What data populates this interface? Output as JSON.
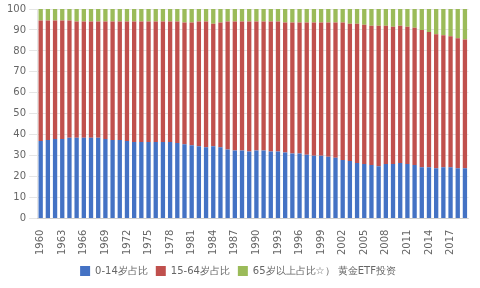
{
  "chart_data": {
    "type": "bar",
    "stacked": true,
    "grid": true,
    "legend": "bottom",
    "categories": [
      1960,
      null,
      null,
      1963,
      null,
      null,
      1966,
      null,
      null,
      1969,
      null,
      null,
      1972,
      null,
      null,
      1975,
      null,
      null,
      1978,
      null,
      null,
      1981,
      null,
      null,
      1984,
      null,
      null,
      1987,
      null,
      null,
      1990,
      null,
      null,
      1993,
      null,
      null,
      1996,
      null,
      null,
      1999,
      null,
      null,
      2002,
      null,
      null,
      2005,
      null,
      null,
      2008,
      null,
      null,
      2011,
      null,
      null,
      2014,
      null,
      null,
      2017,
      null,
      null
    ],
    "series": [
      {
        "name": "0-14岁占比",
        "color": "#4472C4",
        "values": [
          37.0,
          37.5,
          38.0,
          38.0,
          38.5,
          38.5,
          38.5,
          38.5,
          38.5,
          38.0,
          37.5,
          37.5,
          37.0,
          36.5,
          36.5,
          36.5,
          36.5,
          36.5,
          36.5,
          36.0,
          35.5,
          35.0,
          34.5,
          34.0,
          34.5,
          34.0,
          33.0,
          32.5,
          32.5,
          32.0,
          32.5,
          32.5,
          32.0,
          32.0,
          31.5,
          31.0,
          31.0,
          30.5,
          30.0,
          30.0,
          29.5,
          29.0,
          28.0,
          27.5,
          26.5,
          26.0,
          25.5,
          25.0,
          26.0,
          26.0,
          26.5,
          26.0,
          25.5,
          24.5,
          24.5,
          24.0,
          24.5,
          24.5,
          24.0,
          24.0
        ]
      },
      {
        "name": "15-64岁占比",
        "color": "#C0504D",
        "values": [
          57.5,
          57.0,
          56.5,
          56.5,
          56.0,
          55.5,
          55.5,
          55.5,
          55.5,
          56.0,
          56.5,
          56.5,
          57.0,
          57.5,
          57.5,
          57.5,
          57.5,
          57.5,
          57.5,
          58.0,
          58.0,
          58.5,
          59.5,
          60.0,
          58.5,
          59.5,
          61.0,
          61.5,
          61.5,
          62.0,
          61.5,
          61.5,
          62.0,
          62.0,
          62.0,
          62.5,
          62.5,
          63.0,
          63.5,
          63.5,
          64.0,
          64.5,
          65.5,
          65.5,
          66.5,
          66.5,
          66.5,
          67.0,
          66.0,
          65.5,
          65.5,
          65.5,
          65.5,
          65.5,
          64.5,
          64.0,
          63.0,
          62.5,
          62.0,
          61.5
        ]
      },
      {
        "name": "65岁以上占比☆） 黄金ETF投资",
        "color": "#9BBB59",
        "values": [
          5.5,
          5.5,
          5.5,
          5.5,
          5.5,
          6.0,
          6.0,
          6.0,
          6.0,
          6.0,
          6.0,
          6.0,
          6.0,
          6.0,
          6.0,
          6.0,
          6.0,
          6.0,
          6.0,
          6.0,
          6.5,
          6.5,
          6.0,
          6.0,
          7.0,
          6.5,
          6.0,
          6.0,
          6.0,
          6.0,
          6.0,
          6.0,
          6.0,
          6.0,
          6.5,
          6.5,
          6.5,
          6.5,
          6.5,
          6.5,
          6.5,
          6.5,
          6.5,
          7.0,
          7.0,
          7.5,
          8.0,
          8.0,
          8.0,
          8.5,
          8.0,
          8.5,
          9.0,
          10.0,
          11.0,
          12.0,
          12.5,
          13.0,
          14.0,
          14.5
        ]
      }
    ],
    "ylim": [
      0,
      100
    ],
    "yticks": [
      0,
      10,
      20,
      30,
      40,
      50,
      60,
      70,
      80,
      90,
      100
    ]
  }
}
